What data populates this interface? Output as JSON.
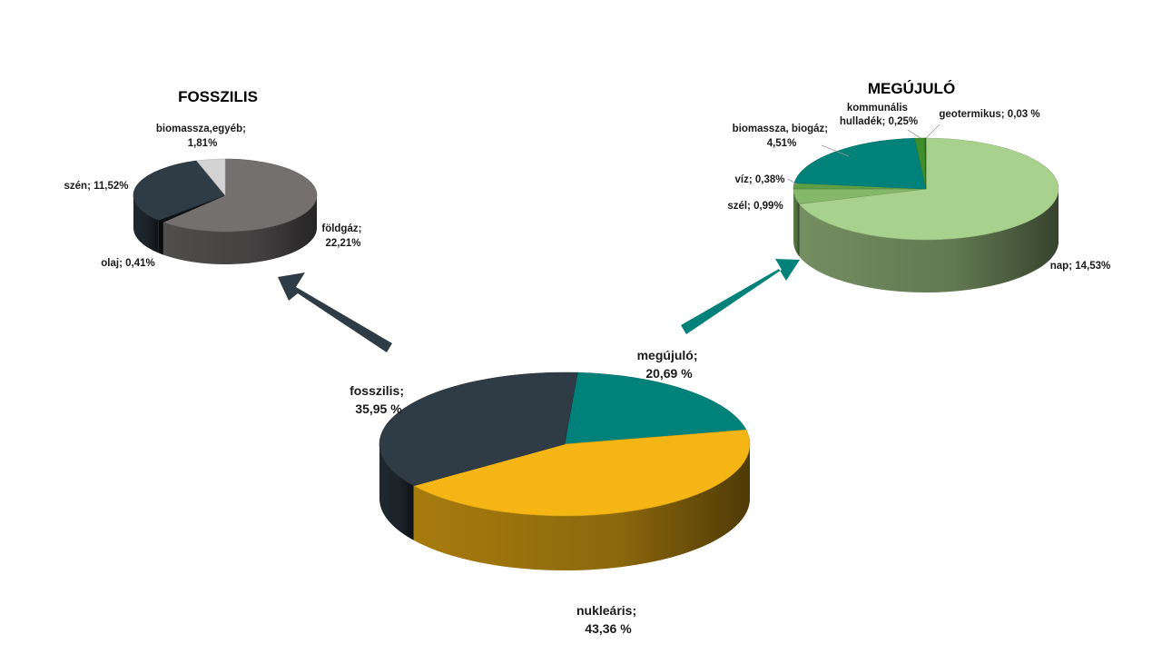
{
  "chart_data": [
    {
      "type": "pie",
      "slices": [
        {
          "name": "megújuló",
          "value": 20.69,
          "label_line1": "megújuló;",
          "label_line2": "20,69 %",
          "color": "#00827A"
        },
        {
          "name": "nukleáris",
          "value": 43.36,
          "label_line1": "nukleáris;",
          "label_line2": "43,36 %",
          "color": "#F4B515"
        },
        {
          "name": "fosszilis",
          "value": 35.95,
          "label_line1": "fosszilis;",
          "label_line2": "35,95 %",
          "color": "#2F3B45"
        }
      ]
    },
    {
      "type": "pie",
      "title": "FOSSZILIS",
      "slices": [
        {
          "name": "földgáz",
          "value": 22.21,
          "label_line1": "földgáz;",
          "label_line2": "22,21%",
          "color": "#747070"
        },
        {
          "name": "olaj",
          "value": 0.41,
          "label_line1": "olaj; 0,41%",
          "label_line2": "",
          "color": "#0F1115"
        },
        {
          "name": "szén",
          "value": 11.52,
          "label_line1": "szén; 11,52%",
          "label_line2": "",
          "color": "#2F3B45"
        },
        {
          "name": "biomassza,egyéb",
          "value": 1.81,
          "label_line1": "biomassza,egyéb;",
          "label_line2": "1,81%",
          "color": "#D3D3D3"
        }
      ]
    },
    {
      "type": "pie",
      "title": "MEGÚJULÓ",
      "slices": [
        {
          "name": "nap",
          "value": 14.53,
          "label_line1": "nap; 14,53%",
          "label_line2": "",
          "color": "#A9D18E"
        },
        {
          "name": "szél",
          "value": 0.99,
          "label_line1": "szél; 0,99%",
          "label_line2": "",
          "color": "#86B86A"
        },
        {
          "name": "víz",
          "value": 0.38,
          "label_line1": "víz; 0,38%",
          "label_line2": "",
          "color": "#5E9E48"
        },
        {
          "name": "biomassza, biogáz",
          "value": 4.51,
          "label_line1": "biomassza, biogáz;",
          "label_line2": "4,51%",
          "color": "#00827A"
        },
        {
          "name": "kommunális hulladék",
          "value": 0.25,
          "label_line1": "kommunális",
          "label_line2": "hulladék; 0,25%",
          "color": "#3E8E2E"
        },
        {
          "name": "geotermikus",
          "value": 0.03,
          "label_line1": "geotermikus; 0,03 %",
          "label_line2": "",
          "color": "#2E6E22"
        }
      ]
    }
  ],
  "arrow_colors": {
    "fosszilis": "#2F3B45",
    "megujulo": "#00827A"
  }
}
